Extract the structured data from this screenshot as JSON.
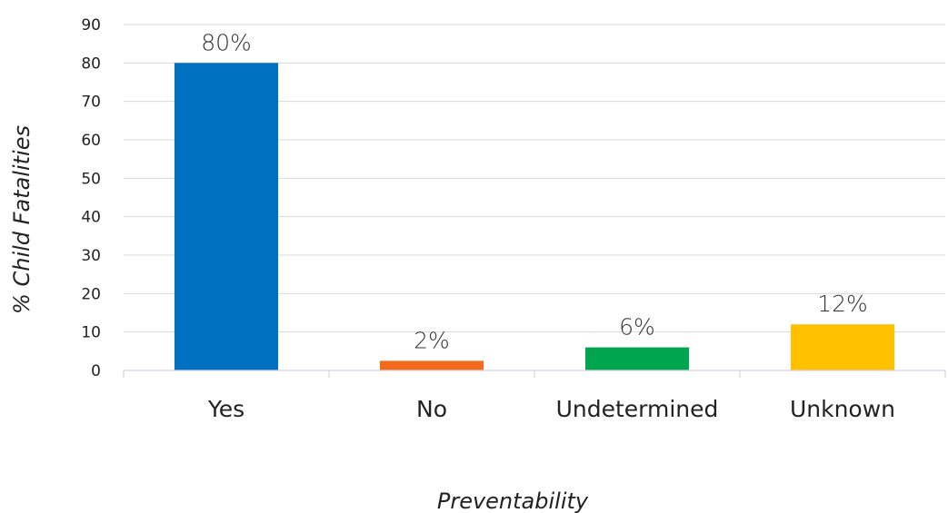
{
  "chart_data": {
    "type": "bar",
    "categories": [
      "Yes",
      "No",
      "Undetermined",
      "Unknown"
    ],
    "values": [
      80,
      2.5,
      6,
      12
    ],
    "data_labels": [
      "80%",
      "2%",
      "6%",
      "12%"
    ],
    "colors": [
      "#0070c0",
      "#f26a1b",
      "#00a550",
      "#ffc000"
    ],
    "title": "",
    "xlabel": "Preventability",
    "ylabel": "% Child Fatalities",
    "ylim": [
      0,
      90
    ],
    "yticks": [
      0,
      10,
      20,
      30,
      40,
      50,
      60,
      70,
      80,
      90
    ],
    "grid": true,
    "legend": "none"
  }
}
